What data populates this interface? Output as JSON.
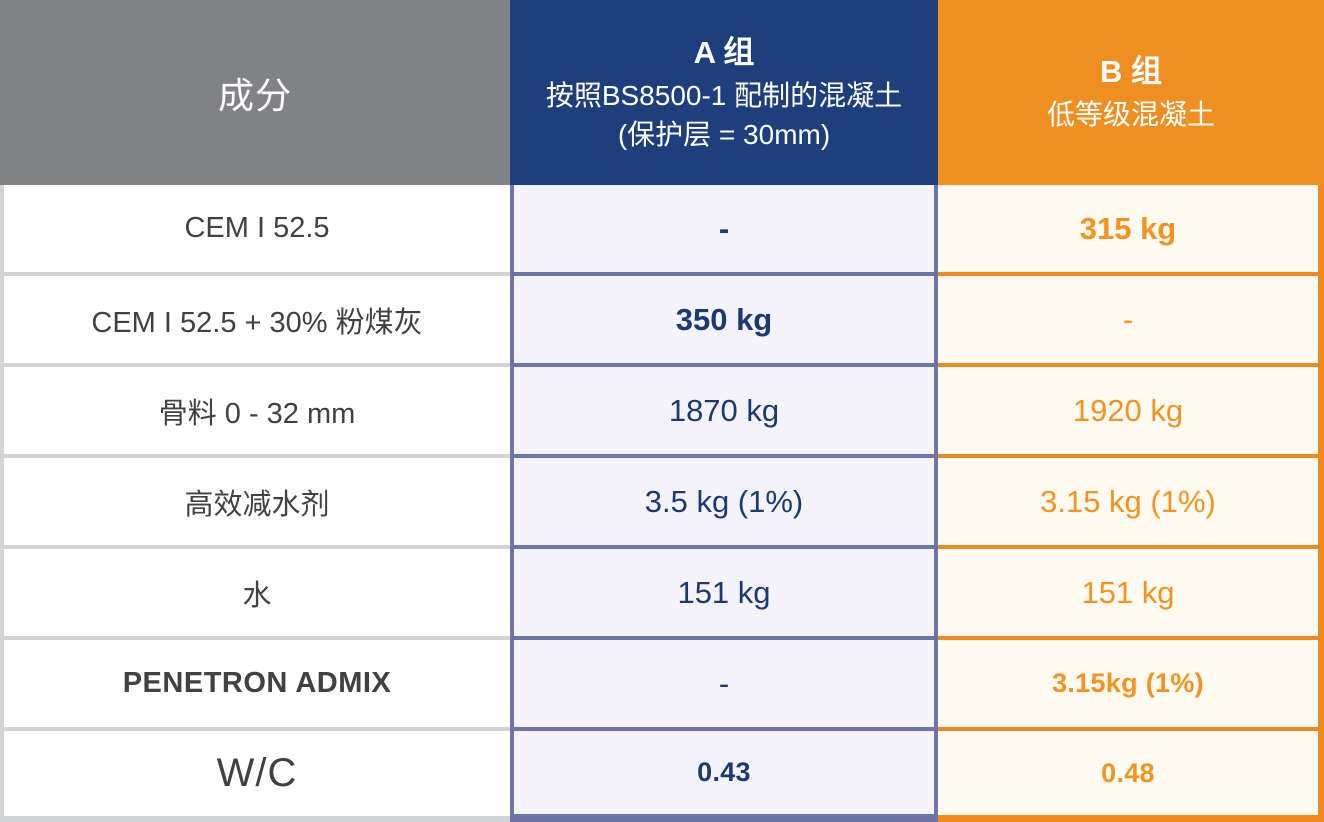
{
  "colors": {
    "gray-header": "#808285",
    "navy": "#1f3e7c",
    "orange": "#ef8f22",
    "label-text": "#414042",
    "a-text": "#1b3a74",
    "b-text": "#f6921e",
    "a-bg": "#f3f3f9",
    "b-bg": "#fffaf2",
    "a-border": "#6f74a8",
    "b-border": "#f08a1f",
    "gray-border": "#d1d3d4"
  },
  "header": {
    "ingredient_label": "成分",
    "group_a": {
      "title": "A 组",
      "subtitle": "按照BS8500-1 配制的混凝土(保护层 = 30mm)"
    },
    "group_b": {
      "title": "B 组",
      "subtitle": "低等级混凝土"
    }
  },
  "rows": [
    {
      "label": "CEM I 52.5",
      "a": "-",
      "b": "315 kg"
    },
    {
      "label": "CEM I 52.5 + 30% 粉煤灰",
      "a": "350 kg",
      "b": "-"
    },
    {
      "label": "骨料 0 - 32 mm",
      "a": "1870 kg",
      "b": "1920 kg"
    },
    {
      "label": "高效减水剂",
      "a": "3.5 kg (1%)",
      "b": "3.15 kg (1%)"
    },
    {
      "label": "水",
      "a": "151 kg",
      "b": "151 kg"
    },
    {
      "label": "PENETRON ADMIX",
      "a": "-",
      "b": "3.15kg (1%)"
    },
    {
      "label": "W/C",
      "a": "0.43",
      "b": "0.48"
    }
  ],
  "chart_data": {
    "type": "table",
    "title": "",
    "columns": [
      "成分",
      "A 组 — 按照BS8500-1 配制的混凝土(保护层 = 30mm)",
      "B 组 — 低等级混凝土"
    ],
    "rows": [
      [
        "CEM I 52.5",
        "-",
        "315 kg"
      ],
      [
        "CEM I 52.5 + 30% 粉煤灰",
        "350 kg",
        "-"
      ],
      [
        "骨料 0 - 32 mm",
        "1870 kg",
        "1920 kg"
      ],
      [
        "高效减水剂",
        "3.5 kg (1%)",
        "3.15 kg (1%)"
      ],
      [
        "水",
        "151 kg",
        "151 kg"
      ],
      [
        "PENETRON ADMIX",
        "-",
        "3.15kg (1%)"
      ],
      [
        "W/C",
        "0.43",
        "0.48"
      ]
    ]
  }
}
